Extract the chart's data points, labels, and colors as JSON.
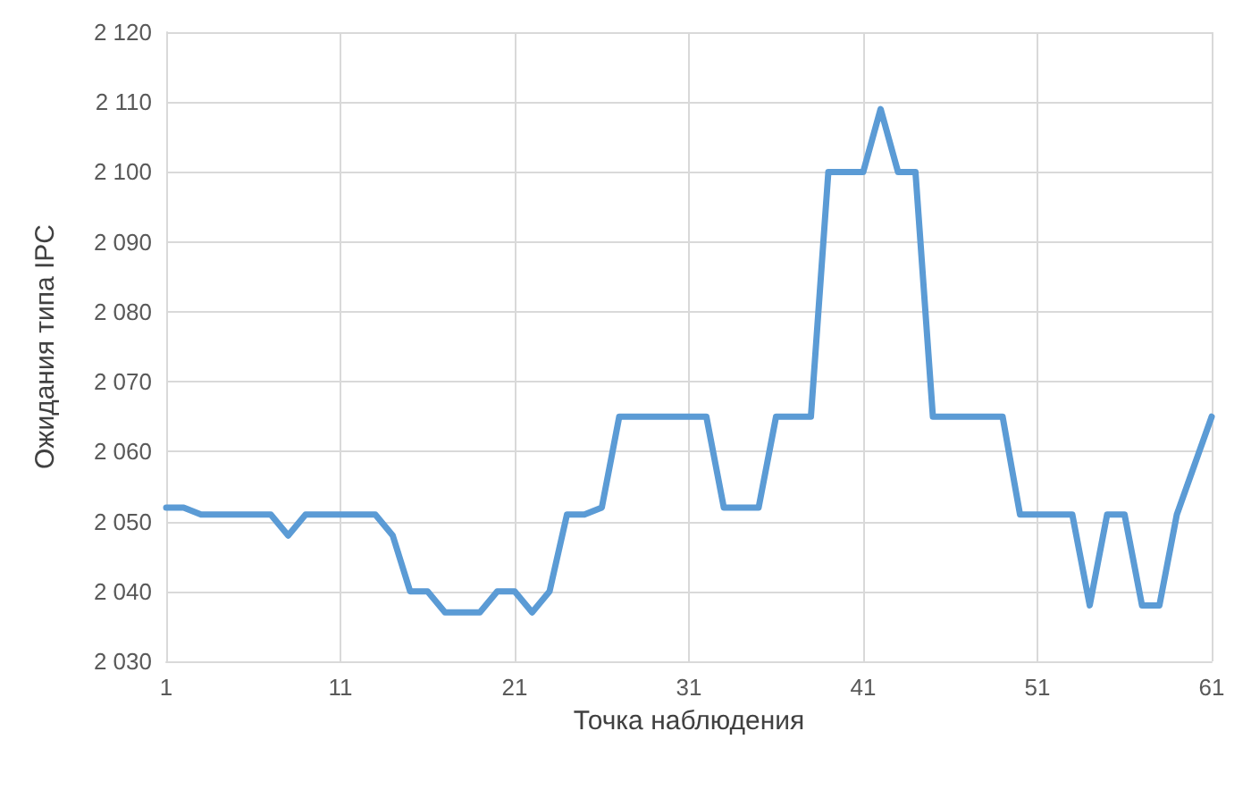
{
  "chart_data": {
    "type": "line",
    "xlabel": "Точка наблюдения",
    "ylabel": "Ожидания типа IPC",
    "x": [
      1,
      2,
      3,
      4,
      5,
      6,
      7,
      8,
      9,
      10,
      11,
      12,
      13,
      14,
      15,
      16,
      17,
      18,
      19,
      20,
      21,
      22,
      23,
      24,
      25,
      26,
      27,
      28,
      29,
      30,
      31,
      32,
      33,
      34,
      35,
      36,
      37,
      38,
      39,
      40,
      41,
      42,
      43,
      44,
      45,
      46,
      47,
      48,
      49,
      50,
      51,
      52,
      53,
      54,
      55,
      56,
      57,
      58,
      59,
      60,
      61
    ],
    "series": [
      {
        "color": "#5b9bd5",
        "values": [
          2052,
          2052,
          2051,
          2051,
          2051,
          2051,
          2051,
          2048,
          2051,
          2051,
          2051,
          2051,
          2051,
          2048,
          2040,
          2040,
          2037,
          2037,
          2037,
          2040,
          2040,
          2037,
          2040,
          2051,
          2051,
          2052,
          2065,
          2065,
          2065,
          2065,
          2065,
          2065,
          2052,
          2052,
          2052,
          2065,
          2065,
          2065,
          2100,
          2100,
          2100,
          2109,
          2100,
          2100,
          2065,
          2065,
          2065,
          2065,
          2065,
          2051,
          2051,
          2051,
          2051,
          2038,
          2051,
          2051,
          2038,
          2038,
          2051,
          2058,
          2065
        ]
      }
    ],
    "xlim": [
      1,
      61
    ],
    "xticks": [
      1,
      11,
      21,
      31,
      41,
      51,
      61
    ],
    "ylim": [
      2030,
      2120
    ],
    "yticks": [
      {
        "value": 2030,
        "label": "2 030"
      },
      {
        "value": 2040,
        "label": "2 040"
      },
      {
        "value": 2050,
        "label": "2 050"
      },
      {
        "value": 2060,
        "label": "2 060"
      },
      {
        "value": 2070,
        "label": "2 070"
      },
      {
        "value": 2080,
        "label": "2 080"
      },
      {
        "value": 2090,
        "label": "2 090"
      },
      {
        "value": 2100,
        "label": "2 100"
      },
      {
        "value": 2110,
        "label": "2 110"
      },
      {
        "value": 2120,
        "label": "2 120"
      }
    ],
    "grid": true,
    "marker": "none",
    "line_style": "solid"
  }
}
